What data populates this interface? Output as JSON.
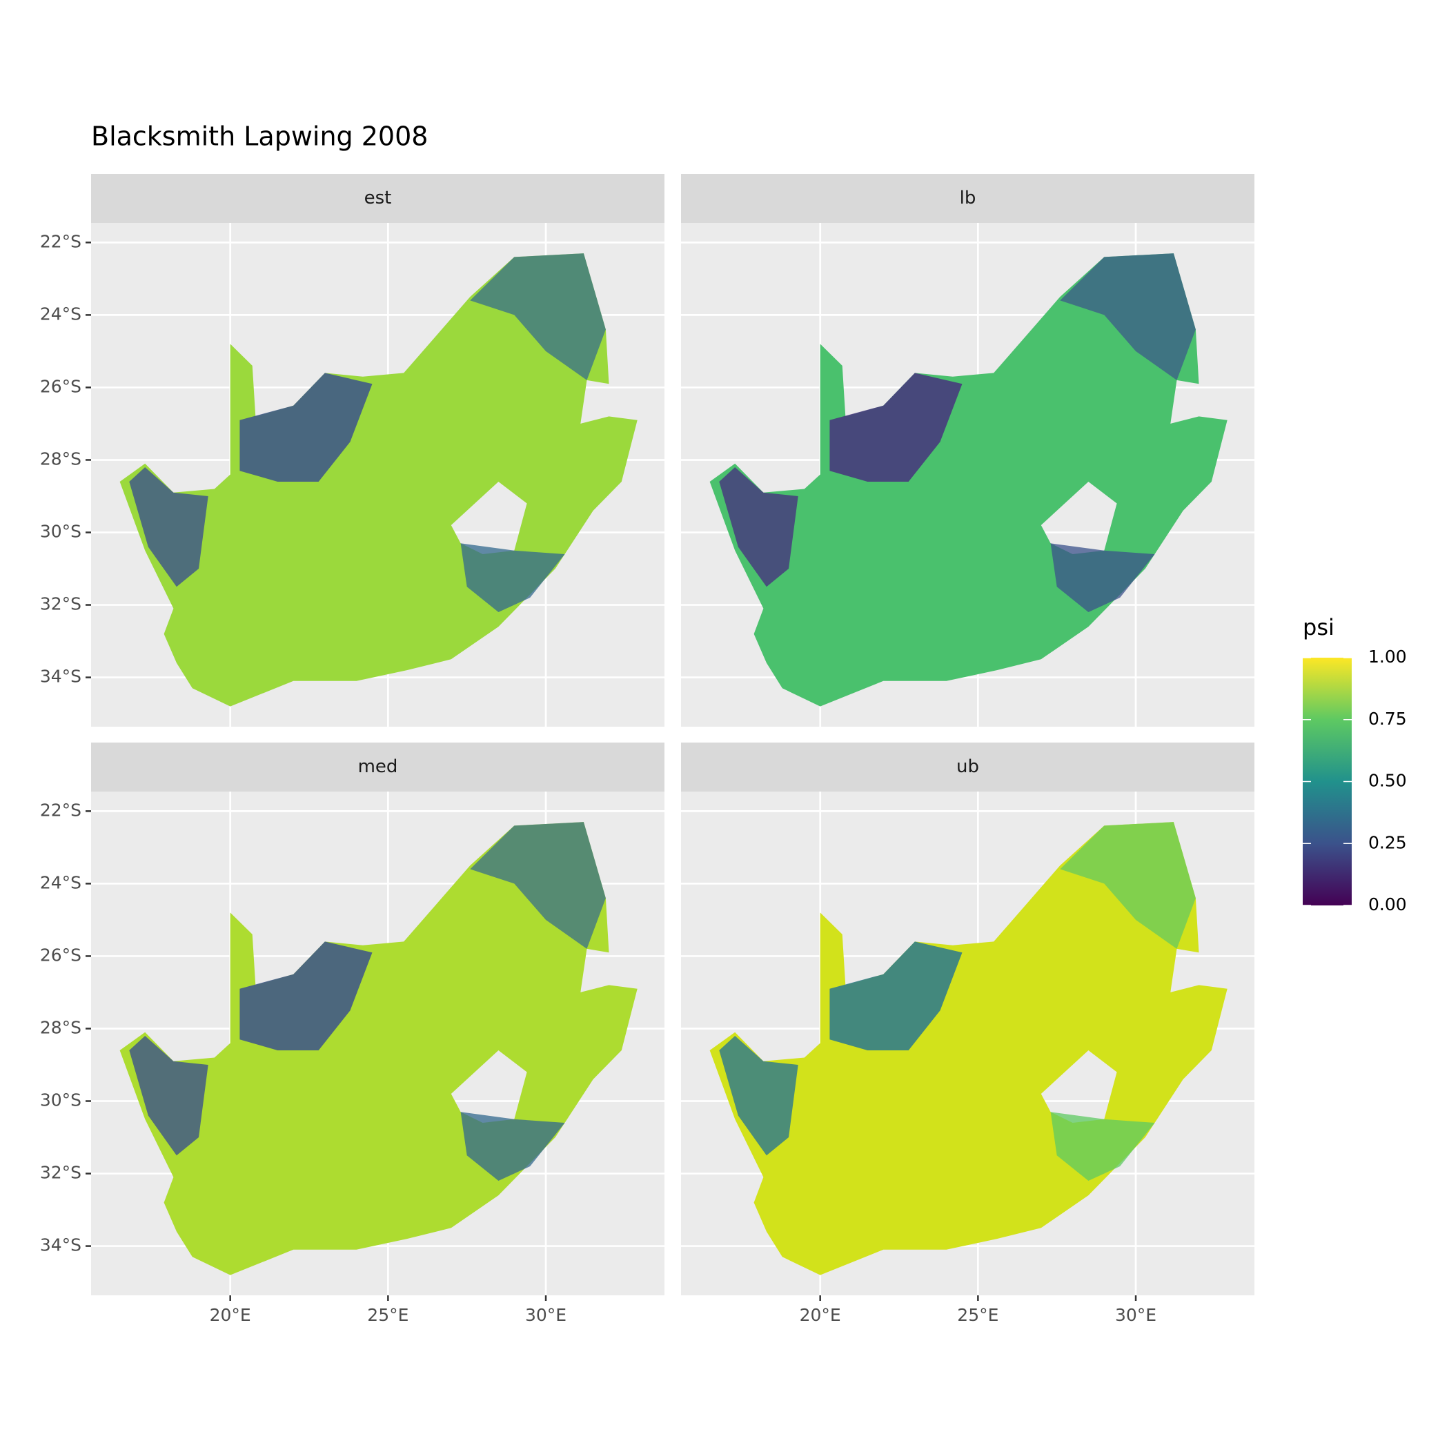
{
  "chart_data": {
    "type": "raster",
    "title": "Blacksmith Lapwing 2008",
    "facets": [
      "est",
      "lb",
      "med",
      "ub"
    ],
    "xlim": [
      15.59,
      33.76
    ],
    "ylim": [
      -35.36,
      -21.46
    ],
    "xticks": [
      {
        "value": 20,
        "label": "20°E"
      },
      {
        "value": 25,
        "label": "25°E"
      },
      {
        "value": 30,
        "label": "30°E"
      }
    ],
    "yticks": [
      {
        "value": -22,
        "label": "22°S"
      },
      {
        "value": -24,
        "label": "24°S"
      },
      {
        "value": -26,
        "label": "26°S"
      },
      {
        "value": -28,
        "label": "28°S"
      },
      {
        "value": -30,
        "label": "30°S"
      },
      {
        "value": -32,
        "label": "32°S"
      },
      {
        "value": -34,
        "label": "34°S"
      }
    ],
    "grid": true,
    "legend": {
      "title": "psi",
      "lim": [
        0,
        1
      ],
      "ticks": [
        {
          "value": 0,
          "label": "0.00"
        },
        {
          "value": 0.25,
          "label": "0.25"
        },
        {
          "value": 0.5,
          "label": "0.50"
        },
        {
          "value": 0.75,
          "label": "0.75"
        },
        {
          "value": 1,
          "label": "1.00"
        }
      ],
      "colors": [
        "#440154",
        "#3b528b",
        "#21918c",
        "#5ec962",
        "#fde725"
      ]
    }
  }
}
